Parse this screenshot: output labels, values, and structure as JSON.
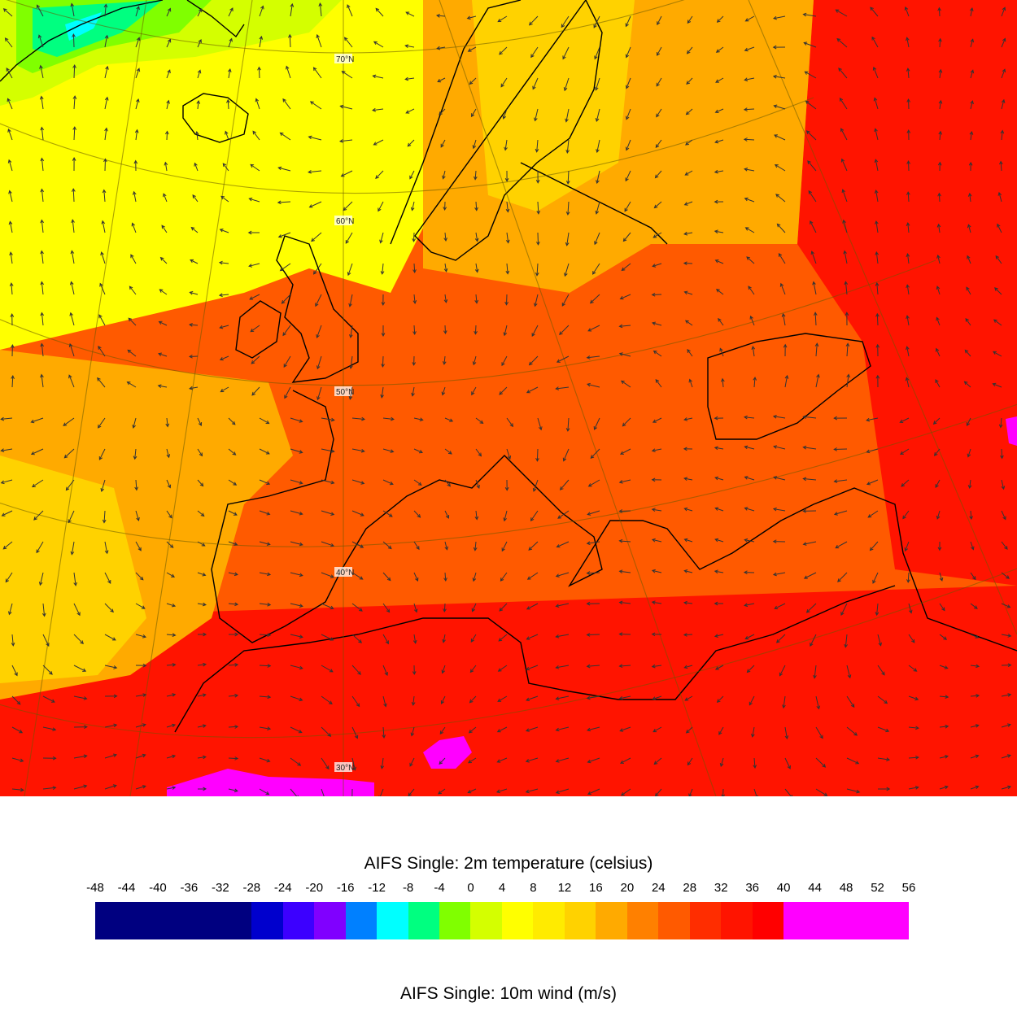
{
  "title_temperature": "AIFS Single: 2m temperature (celsius)",
  "title_wind": "AIFS Single: 10m wind (m/s)",
  "lat_labels": [
    "70°N",
    "60°N",
    "50°N",
    "40°N",
    "30°N"
  ],
  "colorbar": {
    "ticks": [
      "-48",
      "-44",
      "-40",
      "-36",
      "-32",
      "-28",
      "-24",
      "-20",
      "-16",
      "-12",
      "-8",
      "-4",
      "0",
      "4",
      "8",
      "12",
      "16",
      "20",
      "24",
      "28",
      "32",
      "36",
      "40",
      "44",
      "48",
      "52",
      "56"
    ],
    "bins": [
      {
        "from": -48,
        "to": -28,
        "color": "#000080"
      },
      {
        "from": -28,
        "to": -24,
        "color": "#0000cd"
      },
      {
        "from": -24,
        "to": -20,
        "color": "#3c00ff"
      },
      {
        "from": -20,
        "to": -16,
        "color": "#8000ff"
      },
      {
        "from": -16,
        "to": -12,
        "color": "#0080ff"
      },
      {
        "from": -12,
        "to": -8,
        "color": "#00ffff"
      },
      {
        "from": -8,
        "to": -4,
        "color": "#00ff80"
      },
      {
        "from": -4,
        "to": 0,
        "color": "#80ff00"
      },
      {
        "from": 0,
        "to": 4,
        "color": "#d4ff00"
      },
      {
        "from": 4,
        "to": 8,
        "color": "#ffff00"
      },
      {
        "from": 8,
        "to": 12,
        "color": "#ffeb00"
      },
      {
        "from": 12,
        "to": 16,
        "color": "#ffd200"
      },
      {
        "from": 16,
        "to": 20,
        "color": "#ffaa00"
      },
      {
        "from": 20,
        "to": 24,
        "color": "#ff8000"
      },
      {
        "from": 24,
        "to": 28,
        "color": "#ff5a00"
      },
      {
        "from": 28,
        "to": 32,
        "color": "#ff2d00"
      },
      {
        "from": 32,
        "to": 36,
        "color": "#ff1400"
      },
      {
        "from": 36,
        "to": 40,
        "color": "#ff0000"
      },
      {
        "from": 40,
        "to": 56,
        "color": "#ff00ff"
      }
    ]
  }
}
